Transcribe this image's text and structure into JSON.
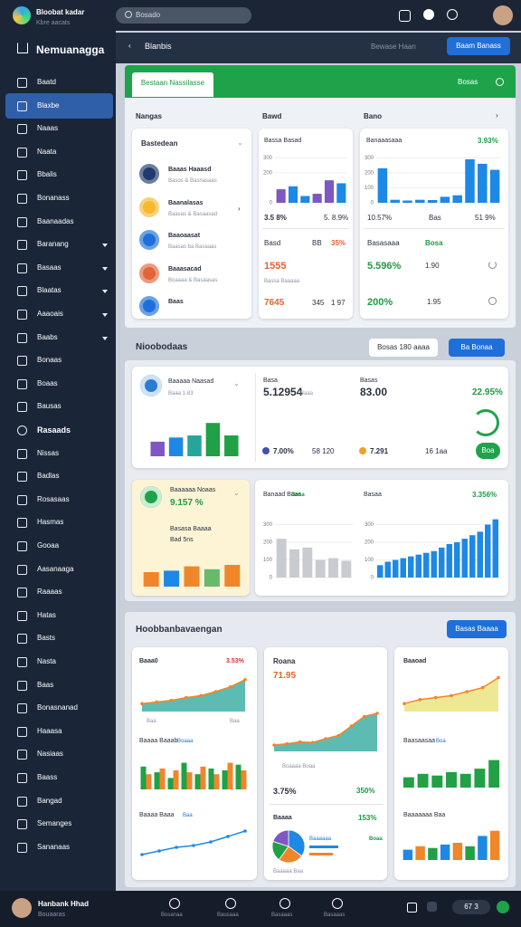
{
  "header": {
    "app_title": "Bloobat kadar",
    "app_subtitle": "Kbre aacats",
    "search": "Bosado"
  },
  "sidebar": {
    "title": "Nemuanagga",
    "items": [
      {
        "label": "Baatd"
      },
      {
        "label": "Blaxbe",
        "active": true
      },
      {
        "label": "Naaas"
      },
      {
        "label": "Naata"
      },
      {
        "label": "Bbalis"
      },
      {
        "label": "Bonanass"
      },
      {
        "label": "Baanaadas"
      },
      {
        "label": "Baranang",
        "expandable": true
      },
      {
        "label": "Basaas",
        "expandable": true
      },
      {
        "label": "Blaatas",
        "expandable": true
      },
      {
        "label": "Aaaoais",
        "expandable": true
      },
      {
        "label": "Baabs",
        "expandable": true
      },
      {
        "label": "Bonaas"
      },
      {
        "label": "Boaas"
      },
      {
        "label": "Bausas"
      },
      {
        "label": "Rasaads",
        "section": true
      },
      {
        "label": "Nissas"
      },
      {
        "label": "Badlas"
      },
      {
        "label": "Rosasaas"
      },
      {
        "label": "Hasmas"
      },
      {
        "label": "Gooaa"
      },
      {
        "label": "Aasanaaga"
      },
      {
        "label": "Raaaas"
      },
      {
        "label": "Hatas"
      },
      {
        "label": "Basts"
      },
      {
        "label": "Nasta"
      },
      {
        "label": "Baas"
      },
      {
        "label": "Bonasnanad"
      },
      {
        "label": "Haaasa"
      },
      {
        "label": "Nasiaas"
      },
      {
        "label": "Baass"
      },
      {
        "label": "Bangad"
      },
      {
        "label": "Semanges"
      },
      {
        "label": "Sananaas"
      }
    ]
  },
  "topbar": {
    "title": "Blanbis",
    "link": "Bewase Haan",
    "button": "Baam Banass"
  },
  "panel1": {
    "tab": "Bestaan Nassilasse",
    "right": "Bosas",
    "col_titles": [
      "Nangas",
      "Bawd",
      "Bano"
    ],
    "list": {
      "dropdown": "Bastedean",
      "items": [
        {
          "name": "Baaas Haaasd",
          "sub": "Basos & Basnasaas",
          "color": "#1e3a6e"
        },
        {
          "name": "Baanalasas",
          "sub": "Baasas & Basaasad",
          "color": "#f5b82e"
        },
        {
          "name": "Baaoaasat",
          "sub": "Baasas ba Basaaas",
          "color": "#1e6fd9"
        },
        {
          "name": "Baaasacad",
          "sub": "Boaaaa & Basaasas",
          "color": "#e0663a"
        },
        {
          "name": "Baas",
          "color": "#1e6fd9"
        }
      ]
    },
    "card_b": {
      "title": "Bassa Basad",
      "s1": "3.5 8%",
      "s2": "5. 8.9%",
      "l1": "Basd",
      "l2": "BB",
      "l3": "35%",
      "big1": "1555",
      "cap": "Bassa Baaaaa",
      "big2": "7645",
      "l4": "345",
      "l5": "1 97"
    },
    "card_c": {
      "title": "Banaaasaaa",
      "pct": "3.93%",
      "s1": "10.57%",
      "s2": "Bas",
      "s3": "51 9%",
      "l1": "Basasaaa",
      "l2": "Bosa",
      "big1": "5.596%",
      "l3": "1.90",
      "big2": "200%",
      "l4": "1.95"
    }
  },
  "section2": {
    "title": "Nioobodaas",
    "button1": "Bosas 180 aaaa",
    "button2": "Ba Bonaa",
    "row1": {
      "title": "Baaaaa Naasad",
      "sub": "Baaa 1-83",
      "m_label": "Basa",
      "m_value": "5.12954",
      "m_unit": "Baaa",
      "m_foot": "7.00%",
      "m_foot2": "58 120",
      "r_label": "Basas",
      "r_value": "83.00",
      "r_pct": "22.95%",
      "r_foot": "7.291",
      "r_foot2": "16 1aa",
      "r_button": "Boa"
    },
    "row2": {
      "title": "Baaaaaa Noaas",
      "pct": "9.157 %",
      "cap1": "Basasa Baaaa",
      "cap2": "Bad 5ns",
      "mid_title": "Banaad Baas",
      "mid_tag": "Boaa",
      "right_title": "Basaa",
      "right_pct": "3.356%"
    }
  },
  "section3": {
    "title": "Hoobbanbavaengan",
    "button": "Basas Baaaa",
    "col1": {
      "t1": "Baaa0",
      "p1": "3.53%",
      "x1": "Baa",
      "x2": "Baa",
      "t2": "Baaaa Baaab",
      "tag2": "Boaaa",
      "t3": "Baaaa Baaa",
      "tag3": "Baa"
    },
    "col2": {
      "t1": "Roana",
      "v1": "71.95",
      "cap": "Boaaaa Boaa",
      "s1": "3.75%",
      "s2": "350%",
      "t2": "Baaaa",
      "p2": "153%",
      "leg1": "Baaaaaa",
      "leg2": "Boaa",
      "foot": "Baaaaa Baa"
    },
    "col3": {
      "t1": "Baaoad",
      "t2": "Baasaasaa",
      "tag2": "Boa",
      "t3": "Baaaaaaa Baa"
    }
  },
  "footer": {
    "user": "Hanbank Hhad",
    "role": "Bouaaras",
    "nav": [
      "Bosanaa",
      "Bausaaa",
      "Basaaas",
      "Basaaas"
    ],
    "pill": "67 3"
  },
  "charts": {
    "card_b": {
      "type": "bar",
      "ylim": [
        0,
        350
      ],
      "yticks": [
        0,
        200,
        300
      ],
      "values": [
        90,
        110,
        45,
        60,
        150,
        130
      ],
      "colors": [
        "#7e57c2",
        "#1e88e5",
        "#1e88e5",
        "#7e57c2",
        "#7e57c2",
        "#1e88e5"
      ]
    },
    "card_c": {
      "type": "bar",
      "ylim": [
        0,
        350
      ],
      "yticks": [
        0,
        100,
        200,
        300
      ],
      "values": [
        230,
        20,
        15,
        20,
        18,
        40,
        50,
        290,
        260,
        220
      ],
      "colors": [
        "#1e88e5"
      ]
    },
    "row1": {
      "type": "bar",
      "ylim": [
        0,
        100
      ],
      "values": [
        35,
        45,
        50,
        80,
        50
      ],
      "colors": [
        "#7e57c2",
        "#1e88e5",
        "#26a69a",
        "#22a045",
        "#22a045"
      ]
    },
    "row2_left": {
      "type": "bar",
      "ylim": [
        0,
        100
      ],
      "values": [
        50,
        55,
        70,
        60,
        75
      ],
      "colors": [
        "#f0862a",
        "#1e88e5",
        "#f0862a",
        "#66bb6a",
        "#f0862a"
      ]
    },
    "row2_mid": {
      "type": "bar",
      "ylim": [
        0,
        400
      ],
      "yticks": [
        0,
        100,
        200,
        300
      ],
      "values": [
        220,
        160,
        170,
        100,
        110,
        95
      ],
      "colors": [
        "#c8cbd0"
      ]
    },
    "row2_right": {
      "type": "bar",
      "ylim": [
        0,
        400
      ],
      "yticks": [
        0,
        100,
        200,
        300
      ],
      "values": [
        70,
        90,
        100,
        110,
        120,
        130,
        140,
        150,
        170,
        190,
        200,
        220,
        240,
        260,
        300,
        330
      ],
      "colors": [
        "#1e88e5"
      ]
    },
    "p3_area1": {
      "type": "area",
      "ylim": [
        0,
        100
      ],
      "values": [
        20,
        24,
        28,
        35,
        40,
        50,
        62,
        80
      ],
      "color": "#f0862a",
      "fill": "#26a69a"
    },
    "p3_grouped": {
      "type": "grouped",
      "ylim": [
        0,
        100
      ],
      "series": [
        {
          "color": "#22a045",
          "values": [
            60,
            45,
            30,
            70,
            40,
            55,
            50,
            65
          ]
        },
        {
          "color": "#f0862a",
          "values": [
            40,
            55,
            50,
            45,
            60,
            40,
            70,
            50
          ]
        }
      ]
    },
    "p3_line1": {
      "type": "line",
      "ylim": [
        0,
        100
      ],
      "values": [
        15,
        25,
        35,
        40,
        50,
        65,
        80
      ],
      "color": "#1e88e5"
    },
    "p3_area2": {
      "type": "area",
      "ylim": [
        0,
        100
      ],
      "values": [
        10,
        12,
        15,
        14,
        20,
        25,
        40,
        55,
        60
      ],
      "color": "#f0862a",
      "fill": "#26a69a"
    },
    "p3_pie": {
      "type": "pie",
      "values": [
        35,
        25,
        20,
        20
      ],
      "colors": [
        "#1e88e5",
        "#f0862a",
        "#22a045",
        "#7e57c2"
      ]
    },
    "p3_area3": {
      "type": "area",
      "ylim": [
        0,
        100
      ],
      "values": [
        20,
        30,
        35,
        40,
        50,
        60,
        85
      ],
      "color": "#f0862a",
      "fill": "#e8e070"
    },
    "p3_bars3": {
      "type": "bar",
      "ylim": [
        0,
        100
      ],
      "values": [
        30,
        40,
        35,
        45,
        40,
        55,
        80
      ],
      "colors": [
        "#22a045"
      ]
    },
    "p3_bars4": {
      "type": "bar",
      "ylim": [
        0,
        100
      ],
      "values": [
        30,
        40,
        35,
        45,
        50,
        40,
        70,
        85
      ],
      "colors": [
        "#1e88e5",
        "#f0862a",
        "#22a045",
        "#1e88e5",
        "#f0862a",
        "#22a045",
        "#1e88e5",
        "#f0862a"
      ]
    }
  }
}
